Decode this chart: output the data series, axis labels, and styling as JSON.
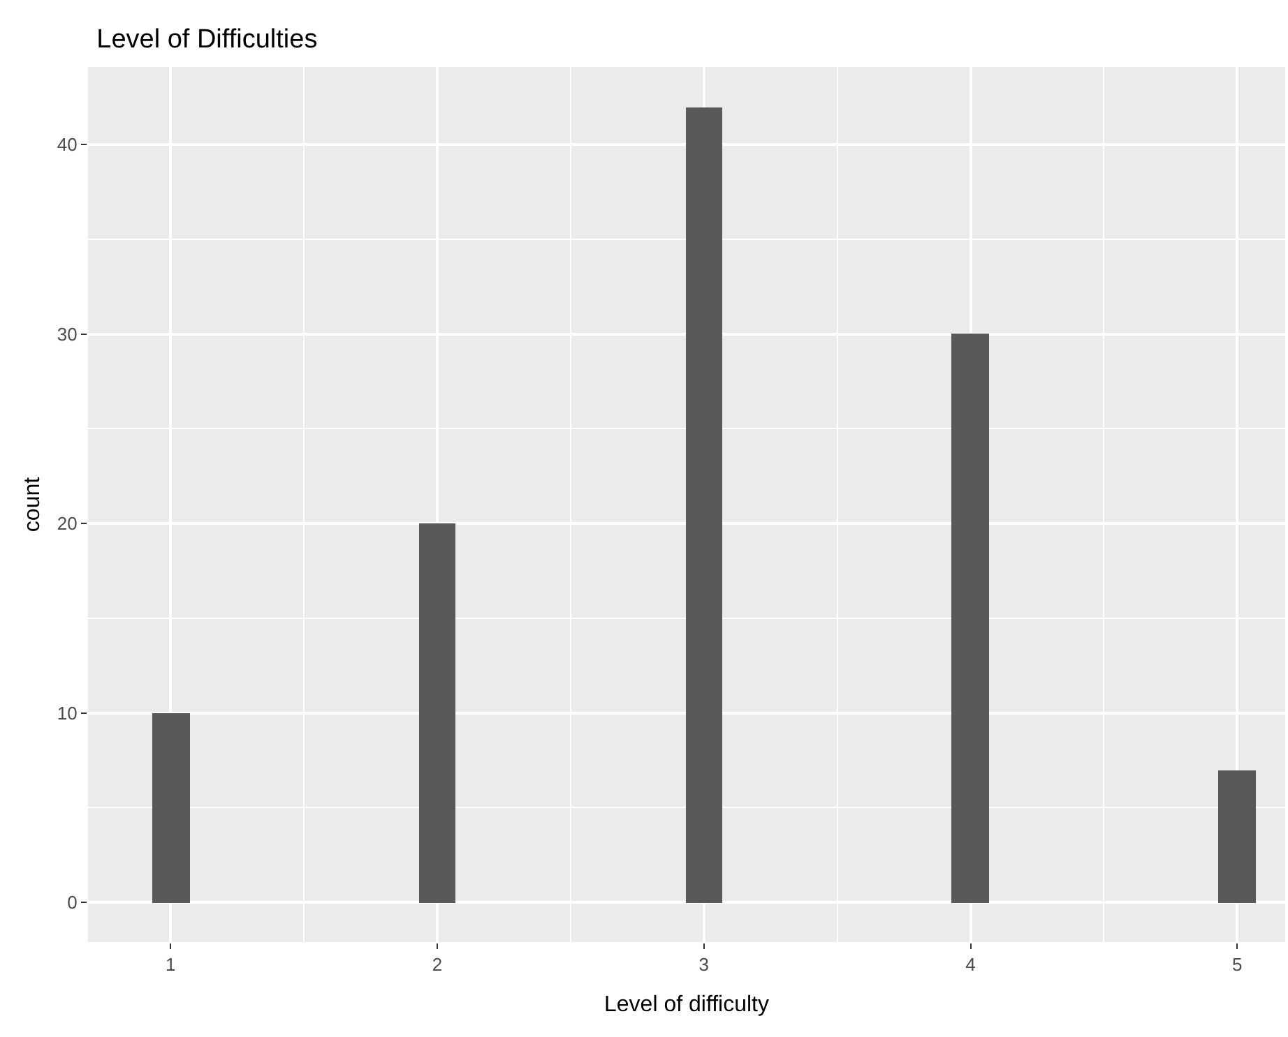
{
  "chart_data": {
    "type": "bar",
    "title": "Level of Difficulties",
    "xlabel": "Level of difficulty",
    "ylabel": "count",
    "x": [
      1,
      2,
      3,
      4,
      5
    ],
    "values": [
      10,
      20,
      42,
      30,
      7
    ],
    "color": "#595959",
    "xlim": [
      0.69,
      5.18
    ],
    "xticks": [
      1,
      2,
      3,
      4,
      5
    ],
    "ylim": [
      -2.1,
      44.1
    ],
    "yticks": [
      0,
      10,
      20,
      30,
      40
    ],
    "grid": true
  }
}
